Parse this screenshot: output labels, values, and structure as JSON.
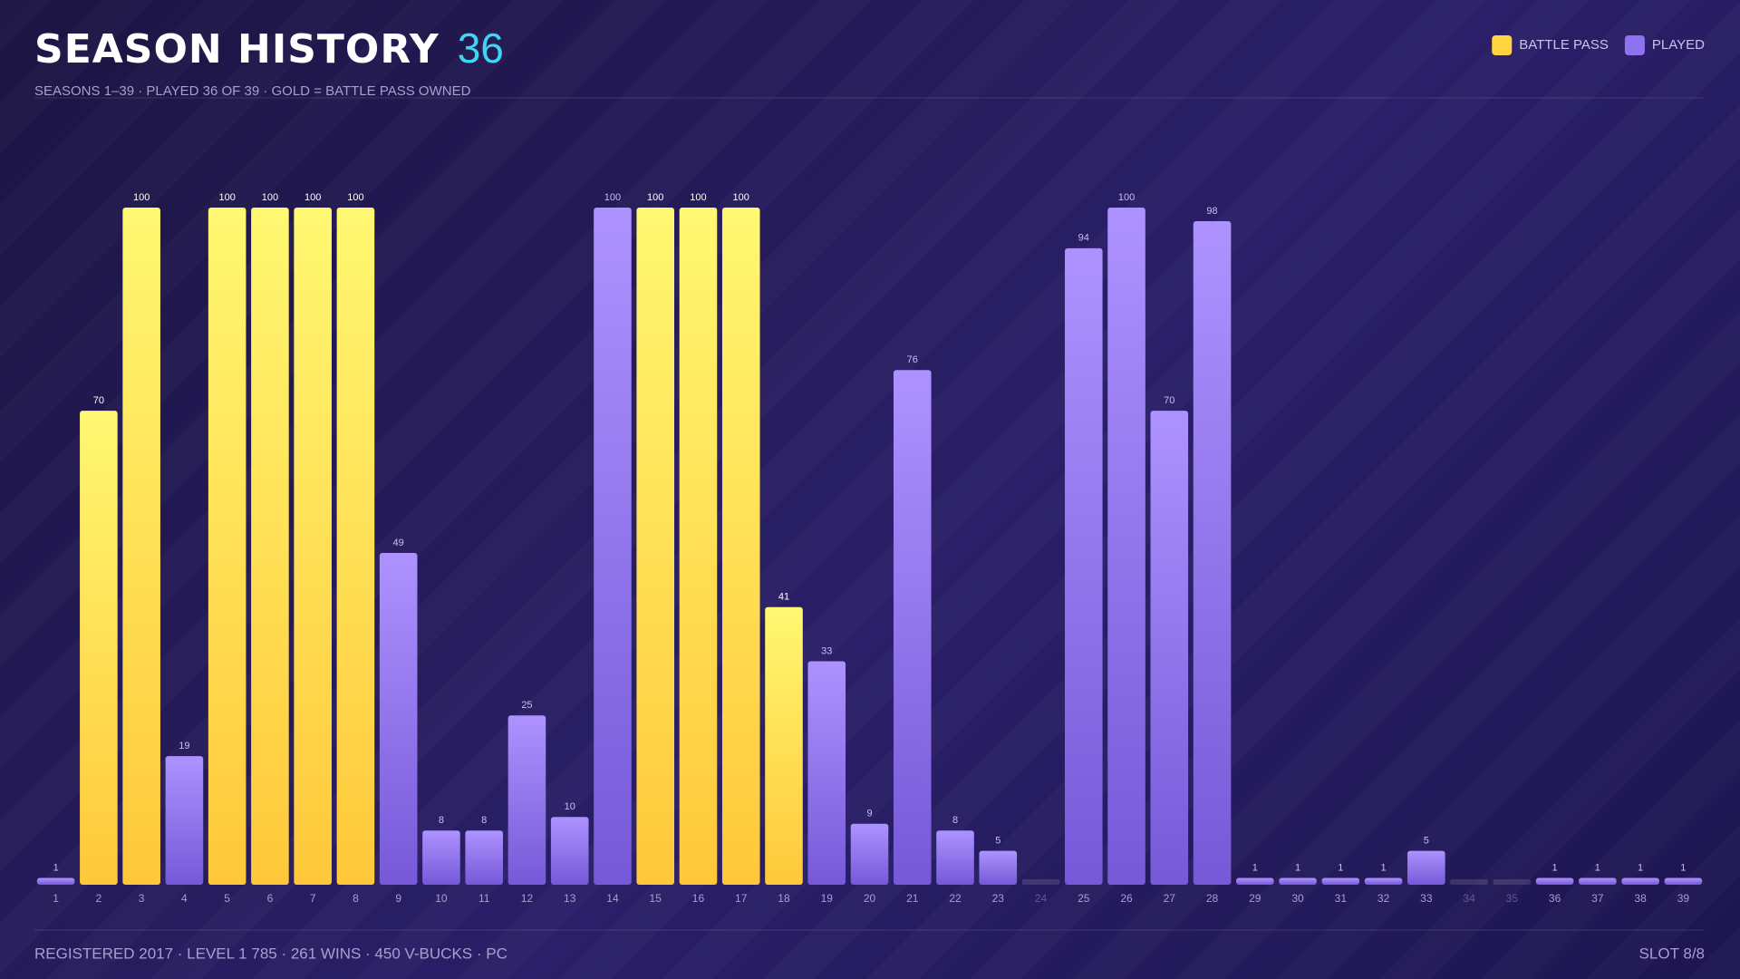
{
  "header": {
    "title": "SEASON HISTORY",
    "count": "36",
    "subtitle": "SEASONS 1–39 · PLAYED 36 OF 39 · GOLD = BATTLE PASS OWNED"
  },
  "chart_data": {
    "type": "bar",
    "categories": [
      "1",
      "2",
      "3",
      "4",
      "5",
      "6",
      "7",
      "8",
      "9",
      "10",
      "11",
      "12",
      "13",
      "14",
      "15",
      "16",
      "17",
      "18",
      "19",
      "20",
      "21",
      "22",
      "23",
      "24",
      "25",
      "26",
      "27",
      "28",
      "29",
      "30",
      "31",
      "32",
      "33",
      "34",
      "35",
      "36",
      "37",
      "38",
      "39"
    ],
    "series": [
      {
        "name": "BATTLE PASS",
        "color": "#ffd43f",
        "values": [
          null,
          70,
          100,
          null,
          100,
          100,
          100,
          100,
          null,
          null,
          null,
          null,
          null,
          null,
          100,
          100,
          100,
          41,
          null,
          null,
          null,
          null,
          null,
          null,
          null,
          null,
          null,
          null,
          null,
          null,
          null,
          null,
          null,
          null,
          null,
          null,
          null,
          null,
          null
        ]
      },
      {
        "name": "PLAYED",
        "color": "#8f72f0",
        "values": [
          1,
          null,
          null,
          19,
          null,
          null,
          null,
          null,
          49,
          8,
          8,
          25,
          10,
          100,
          null,
          null,
          null,
          null,
          33,
          9,
          76,
          8,
          5,
          null,
          94,
          100,
          70,
          98,
          1,
          1,
          1,
          1,
          5,
          null,
          null,
          1,
          1,
          1,
          1
        ]
      }
    ],
    "legend": "top-right"
  },
  "footer": {
    "stats": "REGISTERED 2017 · LEVEL 1 785 · 261 WINS · 450 V-BUCKS · PC",
    "slot": "SLOT 8/8"
  }
}
